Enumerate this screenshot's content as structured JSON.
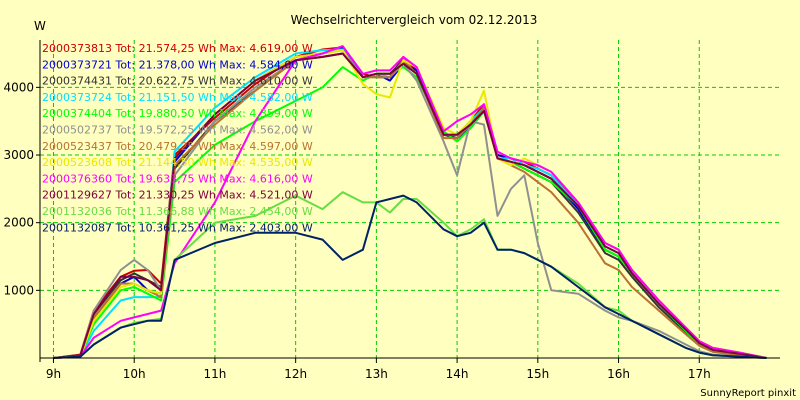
{
  "chart_data": {
    "type": "line",
    "title": "Wechselrichtervergleich vom 02.12.2013",
    "ylabel": "W",
    "footer": "SunnyReport pinxit",
    "xlim": [
      8.833,
      18.0
    ],
    "ylim": [
      0,
      4700
    ],
    "xticks": [
      {
        "value": 9,
        "label": "9h"
      },
      {
        "value": 10,
        "label": "10h"
      },
      {
        "value": 11,
        "label": "11h"
      },
      {
        "value": 12,
        "label": "12h"
      },
      {
        "value": 13,
        "label": "13h"
      },
      {
        "value": 14,
        "label": "14h"
      },
      {
        "value": 15,
        "label": "15h"
      },
      {
        "value": 16,
        "label": "16h"
      },
      {
        "value": 17,
        "label": "17h"
      }
    ],
    "yticks": [
      {
        "value": 1000,
        "label": "1000"
      },
      {
        "value": 2000,
        "label": "2000"
      },
      {
        "value": 3000,
        "label": "3000"
      },
      {
        "value": 4000,
        "label": "4000"
      }
    ],
    "grid": true,
    "legend_position": "top-left",
    "x": [
      9.0,
      9.333,
      9.5,
      9.833,
      10.0,
      10.167,
      10.333,
      10.5,
      11.0,
      11.5,
      12.0,
      12.333,
      12.583,
      12.833,
      13.0,
      13.167,
      13.333,
      13.5,
      13.833,
      14.0,
      14.167,
      14.333,
      14.5,
      14.667,
      14.833,
      15.0,
      15.167,
      15.5,
      15.833,
      16.0,
      16.167,
      16.5,
      16.833,
      17.0,
      17.167,
      17.5,
      17.833
    ],
    "series": [
      {
        "name": "2000373813 Tot: 21.574,25 Wh Max: 4.619,00 W",
        "color": "#cc0000",
        "values": [
          0,
          50,
          700,
          1200,
          1290,
          1300,
          1100,
          3000,
          3550,
          4050,
          4450,
          4560,
          4590,
          4200,
          4150,
          4150,
          4450,
          4250,
          3300,
          3300,
          3500,
          3750,
          3000,
          2950,
          2900,
          2800,
          2700,
          2300,
          1700,
          1600,
          1300,
          850,
          450,
          250,
          150,
          80,
          0
        ]
      },
      {
        "name": "2000373721 Tot: 21.378,00 Wh Max: 4.584,00 W",
        "color": "#0000cc",
        "values": [
          0,
          30,
          550,
          1100,
          1200,
          1000,
          950,
          2900,
          3600,
          4100,
          4450,
          4500,
          4580,
          4150,
          4200,
          4100,
          4350,
          4250,
          3300,
          3250,
          3400,
          3650,
          3000,
          2950,
          2850,
          2750,
          2650,
          2200,
          1600,
          1500,
          1250,
          800,
          400,
          200,
          100,
          50,
          0
        ]
      },
      {
        "name": "2000374431 Tot: 20.622,75 Wh Max: 4.610,00 W",
        "color": "#333333",
        "values": [
          0,
          40,
          650,
          1150,
          1250,
          1150,
          1050,
          2800,
          3500,
          3950,
          4400,
          4450,
          4500,
          4150,
          4200,
          4200,
          4400,
          4200,
          3300,
          3250,
          3500,
          3700,
          2950,
          2900,
          2800,
          2700,
          2600,
          2150,
          1550,
          1450,
          1200,
          750,
          380,
          200,
          100,
          50,
          0
        ]
      },
      {
        "name": "2000373724 Tot: 21.151,50 Wh Max: 4.582,00 W",
        "color": "#00e0ff",
        "values": [
          0,
          20,
          400,
          850,
          900,
          900,
          900,
          3050,
          3700,
          4150,
          4500,
          4550,
          4560,
          4150,
          4200,
          4150,
          4350,
          4200,
          3300,
          3300,
          3500,
          3700,
          2950,
          2950,
          2850,
          2800,
          2700,
          2250,
          1650,
          1550,
          1250,
          800,
          400,
          200,
          100,
          50,
          0
        ]
      },
      {
        "name": "2000374404 Tot: 19.880,50 Wh Max: 4.359,00 W",
        "color": "#00ff00",
        "values": [
          0,
          30,
          500,
          1000,
          1050,
          950,
          850,
          2600,
          3150,
          3500,
          3800,
          4000,
          4300,
          4100,
          4200,
          4200,
          4300,
          4150,
          3350,
          3200,
          3400,
          3650,
          2950,
          2900,
          2800,
          2700,
          2600,
          2250,
          1600,
          1500,
          1250,
          800,
          400,
          200,
          100,
          50,
          0
        ]
      },
      {
        "name": "2000502737 Tot: 19.572,25 Wh Max: 4.562,00 W",
        "color": "#909090",
        "values": [
          0,
          30,
          700,
          1300,
          1450,
          1300,
          1000,
          2700,
          3500,
          4000,
          4400,
          4500,
          4550,
          4150,
          4150,
          4150,
          4350,
          4100,
          3200,
          2700,
          3500,
          3450,
          2100,
          2500,
          2700,
          1700,
          1000,
          950,
          700,
          600,
          550,
          400,
          200,
          100,
          50,
          20,
          0
        ]
      },
      {
        "name": "2000523437 Tot: 20.479,25 Wh Max: 4.597,00 W",
        "color": "#b87333",
        "values": [
          0,
          40,
          600,
          1100,
          1100,
          1000,
          900,
          2850,
          3450,
          3950,
          4400,
          4450,
          4500,
          4150,
          4150,
          4150,
          4400,
          4200,
          3250,
          3250,
          3450,
          3700,
          2950,
          2850,
          2750,
          2600,
          2450,
          2000,
          1400,
          1300,
          1050,
          700,
          350,
          180,
          90,
          40,
          0
        ]
      },
      {
        "name": "2000523608 Tot: 21.144,50 Wh Max: 4.535,00 W",
        "color": "#e8e800",
        "values": [
          0,
          30,
          550,
          1050,
          1100,
          1000,
          950,
          2950,
          3600,
          4100,
          4450,
          4500,
          4550,
          4050,
          3900,
          3850,
          4400,
          4300,
          3400,
          3300,
          3500,
          3950,
          2950,
          2850,
          2950,
          2850,
          2750,
          2300,
          1700,
          1600,
          1300,
          850,
          450,
          250,
          150,
          80,
          0
        ]
      },
      {
        "name": "2000376360 Tot: 19.633,75 Wh Max: 4.616,00 W",
        "color": "#ff00ff",
        "values": [
          0,
          20,
          300,
          550,
          600,
          650,
          700,
          1400,
          2300,
          3500,
          4400,
          4500,
          4610,
          4200,
          4250,
          4250,
          4450,
          4300,
          3350,
          3500,
          3600,
          3750,
          3050,
          2950,
          2900,
          2850,
          2750,
          2300,
          1700,
          1600,
          1300,
          850,
          450,
          250,
          150,
          80,
          0
        ]
      },
      {
        "name": "2001129627 Tot: 21.330,25 Wh Max: 4.521,00 W",
        "color": "#800040",
        "values": [
          0,
          40,
          650,
          1200,
          1200,
          1150,
          1000,
          2950,
          3600,
          4100,
          4400,
          4450,
          4500,
          4150,
          4200,
          4200,
          4350,
          4200,
          3300,
          3300,
          3450,
          3650,
          2950,
          2900,
          2850,
          2750,
          2650,
          2250,
          1650,
          1550,
          1250,
          800,
          420,
          220,
          120,
          60,
          0
        ]
      },
      {
        "name": "2001132036 Tot: 11.366,88 Wh Max: 2.454,00 W",
        "color": "#66dd44",
        "values": [
          0,
          20,
          200,
          450,
          520,
          550,
          580,
          1450,
          2000,
          2100,
          2400,
          2200,
          2450,
          2300,
          2300,
          2150,
          2350,
          2350,
          2000,
          1800,
          1900,
          2050,
          1600,
          1600,
          1550,
          1450,
          1350,
          1100,
          750,
          700,
          550,
          350,
          150,
          80,
          40,
          20,
          0
        ]
      },
      {
        "name": "2001132087 Tot: 10.361,25 Wh Max: 2.403,00 W",
        "color": "#002266",
        "values": [
          0,
          20,
          200,
          450,
          500,
          550,
          550,
          1450,
          1700,
          1850,
          1850,
          1750,
          1450,
          1600,
          2300,
          2350,
          2400,
          2300,
          1900,
          1800,
          1850,
          2000,
          1600,
          1600,
          1550,
          1450,
          1350,
          1050,
          750,
          650,
          550,
          350,
          150,
          80,
          40,
          20,
          0
        ]
      }
    ]
  }
}
